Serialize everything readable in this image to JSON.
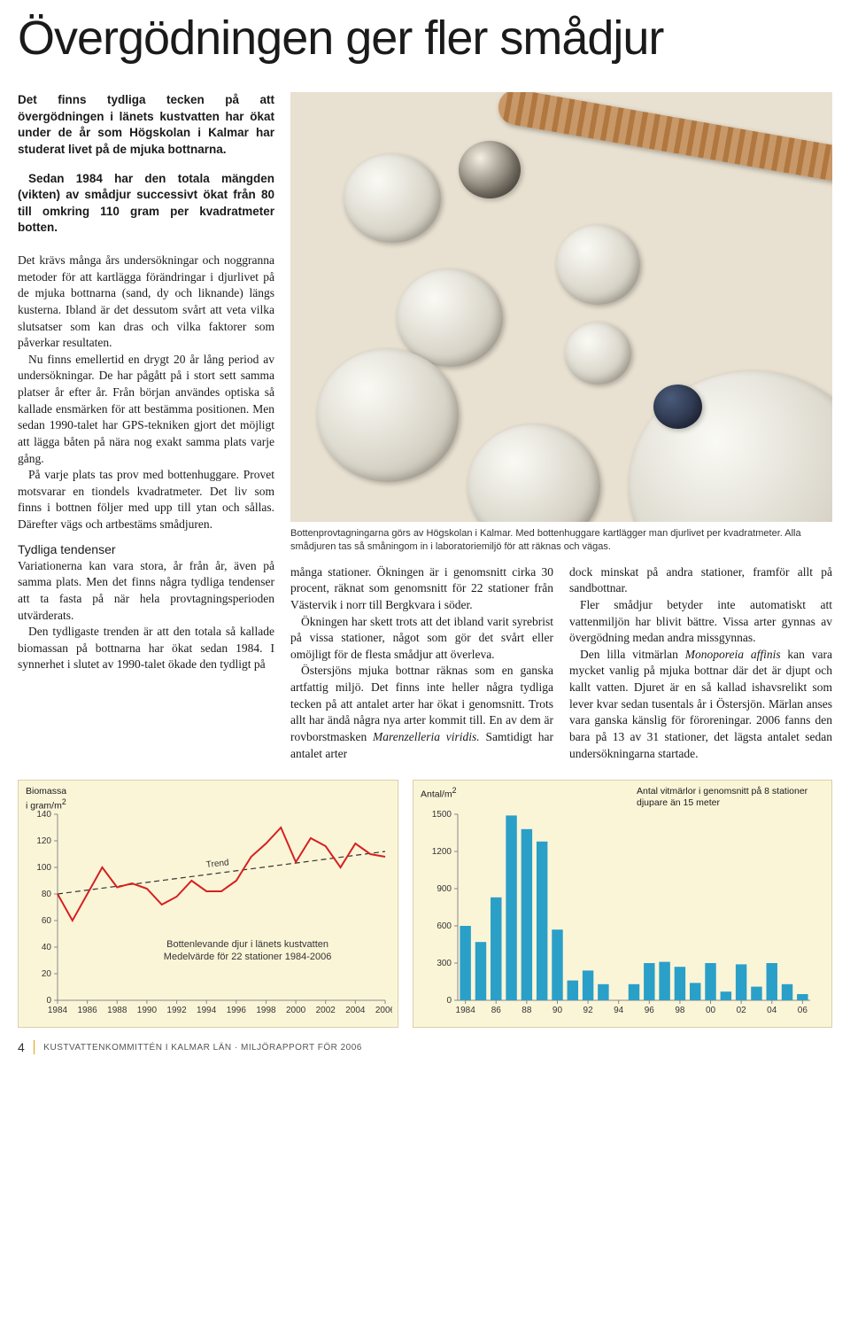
{
  "title": "Övergödningen ger fler smådjur",
  "intro1": "Det finns tydliga tecken på att övergödningen i länets kustvatten har ökat under de år som Högskolan i Kalmar har studerat livet på de mjuka bottnarna.",
  "intro2": "Sedan 1984 har den totala mängden (vikten) av smådjur successivt ökat från 80 till omkring 110 gram per kvadratmeter botten.",
  "body1": "Det krävs många års undersökningar och noggranna metoder för att kartlägga förändringar i djurlivet på de mjuka bottnarna (sand, dy och liknande) längs kusterna. Ibland är det dessutom svårt att veta vilka slutsatser som kan dras och vilka faktorer som påverkar resultaten.",
  "body2": "Nu finns emellertid en drygt 20 år lång period av undersökningar. De har pågått på i stort sett samma platser år efter år. Från början användes optiska så kallade ensmärken för att bestämma positionen. Men sedan 1990-talet har GPS-tekniken gjort det möjligt att lägga båten på nära nog exakt samma plats varje gång.",
  "body3": "På varje plats tas prov med bottenhuggare. Provet motsvarar en tiondels kvadratmeter. Det liv som finns i bottnen följer med upp till ytan och sållas. Därefter vägs och artbestäms smådjuren.",
  "subhead1": "Tydliga tendenser",
  "body4": "Variationerna kan vara stora, år från år, även på samma plats. Men det finns några tydliga tendenser att ta fasta på när hela provtagningsperioden utvärderats.",
  "body5": "Den tydligaste trenden är att den totala så kallade biomassan på bottnarna har ökat sedan 1984. I synnerhet i slutet av 1990-talet ökade den tydligt på",
  "caption": "Bottenprovtagningarna görs av Högskolan i Kalmar. Med bottenhuggare kartlägger man djurlivet per kvadratmeter. Alla smådjuren tas så småningom in i laboratoriemiljö för att räknas och vägas.",
  "col2a": "många stationer. Ökningen är i genomsnitt cirka 30 procent, räknat som genomsnitt för 22 stationer från Västervik i norr till Bergkvara i söder.",
  "col2b": "Ökningen har skett trots att det ibland varit syrebrist på vissa stationer, något som gör det svårt eller omöjligt för de flesta smådjur att överleva.",
  "col2c_pre": "Östersjöns mjuka bottnar räknas som en ganska artfattig miljö. Det finns inte heller några tydliga tecken på att antalet arter har ökat i genomsnitt. Trots allt har ändå några nya arter kommit till. En av dem är rovborstmasken ",
  "col2c_em": "Marenzelleria viridis.",
  "col2c_post": " Samtidigt har antalet arter",
  "col3a": "dock minskat på andra stationer, framför allt på sandbottnar.",
  "col3b": "Fler smådjur betyder inte automatiskt att vattenmiljön har blivit bättre. Vissa arter gynnas av övergödning medan andra missgynnas.",
  "col3c_pre": "Den lilla vitmärlan ",
  "col3c_em": "Monoporeia affinis",
  "col3c_post": " kan vara mycket vanlig på mjuka bottnar där det är djupt och kallt vatten. Djuret är en så kallad ishavsrelikt som lever kvar sedan tusentals år i Östersjön. Märlan anses vara ganska känslig för föroreningar. 2006 fanns den bara på 13 av 31 stationer, det lägsta antalet sedan undersökningarna startade.",
  "chart1": {
    "type": "line",
    "ylabel_top": "Biomassa",
    "ylabel_unit": "i gram/m",
    "ylabel_sup": "2",
    "xlim": [
      1984,
      2006
    ],
    "ylim": [
      0,
      140
    ],
    "ytick_step": 20,
    "x_ticks": [
      1984,
      1986,
      1988,
      1990,
      1992,
      1994,
      1996,
      1998,
      2000,
      2002,
      2004,
      2006
    ],
    "line_color": "#d62020",
    "trend_label": "Trend",
    "caption1": "Bottenlevande djur i länets kustvatten",
    "caption2": "Medelvärde för 22 stationer 1984-2006",
    "values": [
      80,
      60,
      80,
      100,
      85,
      88,
      84,
      72,
      78,
      90,
      82,
      82,
      90,
      108,
      118,
      130,
      104,
      122,
      116,
      100,
      118,
      110,
      108
    ],
    "trend_start": 80,
    "trend_end": 112,
    "background": "#fbf5d8"
  },
  "chart2": {
    "type": "bar",
    "ylabel_top": "Antal/m",
    "ylabel_sup": "2",
    "title": "Antal vitmärlor i genomsnitt på 8 stationer djupare än 15 meter",
    "xlim": [
      1984,
      2006
    ],
    "ylim": [
      0,
      1500
    ],
    "ytick_step": 300,
    "x_ticks": [
      1984,
      86,
      88,
      90,
      92,
      94,
      96,
      98,
      "00",
      "02",
      "04",
      "06"
    ],
    "bar_color": "#2aa0c8",
    "values": [
      600,
      470,
      830,
      1490,
      1380,
      1280,
      570,
      160,
      240,
      130,
      0,
      130,
      300,
      310,
      270,
      140,
      300,
      70,
      290,
      110,
      300,
      130,
      50
    ],
    "background": "#fbf5d8"
  },
  "footer": {
    "page": "4",
    "text": "KUSTVATTENKOMMITTÉN I KALMAR LÄN · MILJÖRAPPORT FÖR 2006"
  }
}
